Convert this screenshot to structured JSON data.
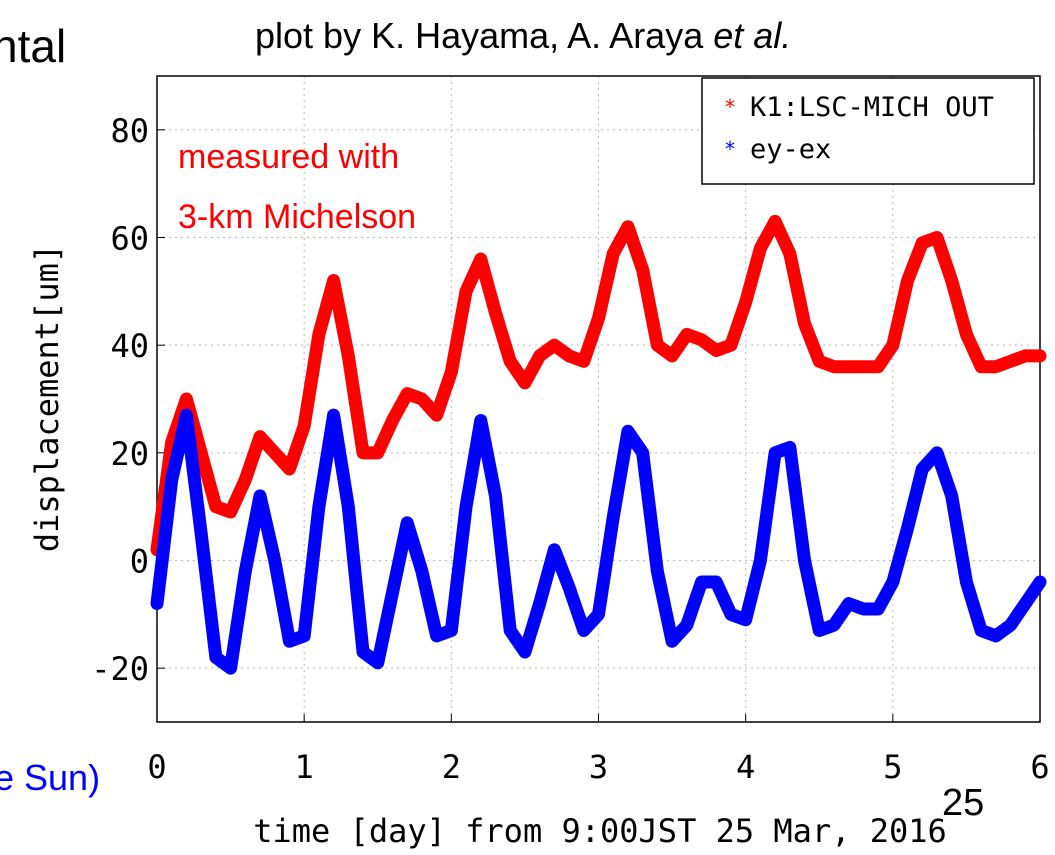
{
  "chart_data": {
    "type": "line",
    "credit": "plot by K. Hayama, A. Araya",
    "credit_italic": "et al.",
    "clipped_left_text": "ntal",
    "clipped_bottom_text": "e Sun)",
    "page_number": "25",
    "annotation": [
      "measured with",
      "3-km Michelson"
    ],
    "xlabel": "time [day] from 9:00JST 25 Mar, 2016",
    "ylabel": "displacement[um]",
    "xlim": [
      0,
      6
    ],
    "ylim": [
      -30,
      90
    ],
    "xticks": [
      0,
      1,
      2,
      3,
      4,
      5,
      6
    ],
    "yticks": [
      -20,
      0,
      20,
      40,
      60,
      80
    ],
    "grid": true,
    "legend": "upper right",
    "x": [
      0,
      0.1,
      0.2,
      0.3,
      0.4,
      0.5,
      0.6,
      0.7,
      0.8,
      0.9,
      1,
      1.1,
      1.2,
      1.3,
      1.4,
      1.5,
      1.6,
      1.7,
      1.8,
      1.9,
      2,
      2.1,
      2.2,
      2.3,
      2.4,
      2.5,
      2.6,
      2.7,
      2.8,
      2.9,
      3,
      3.1,
      3.2,
      3.3,
      3.4,
      3.5,
      3.6,
      3.7,
      3.8,
      3.9,
      4,
      4.1,
      4.2,
      4.3,
      4.4,
      4.5,
      4.6,
      4.7,
      4.8,
      4.9,
      5,
      5.1,
      5.2,
      5.3,
      5.4,
      5.5,
      5.6,
      5.7,
      5.8,
      5.9,
      6
    ],
    "series": [
      {
        "name": "K1:LSC-MICH OUT",
        "color": "#ff0000",
        "values": [
          2,
          22,
          30,
          20,
          10,
          9,
          15,
          23,
          20,
          17,
          25,
          42,
          52,
          38,
          20,
          20,
          26,
          31,
          30,
          27,
          35,
          50,
          56,
          46,
          37,
          33,
          38,
          40,
          38,
          37,
          45,
          57,
          62,
          54,
          40,
          38,
          42,
          41,
          39,
          40,
          48,
          58,
          63,
          57,
          44,
          37,
          36,
          36,
          36,
          36,
          40,
          52,
          59,
          60,
          52,
          42,
          36,
          36,
          37,
          38,
          38
        ]
      },
      {
        "name": "ey-ex",
        "color": "#0000ff",
        "values": [
          -8,
          15,
          27,
          5,
          -18,
          -20,
          -2,
          12,
          0,
          -15,
          -14,
          10,
          27,
          10,
          -17,
          -19,
          -6,
          7,
          -2,
          -14,
          -13,
          10,
          26,
          12,
          -13,
          -17,
          -8,
          2,
          -5,
          -13,
          -10,
          8,
          24,
          20,
          -2,
          -15,
          -12,
          -4,
          -4,
          -10,
          -11,
          0,
          20,
          21,
          0,
          -13,
          -12,
          -8,
          -9,
          -9,
          -4,
          6,
          17,
          20,
          12,
          -4,
          -13,
          -14,
          -12,
          -8,
          -4
        ]
      }
    ]
  }
}
